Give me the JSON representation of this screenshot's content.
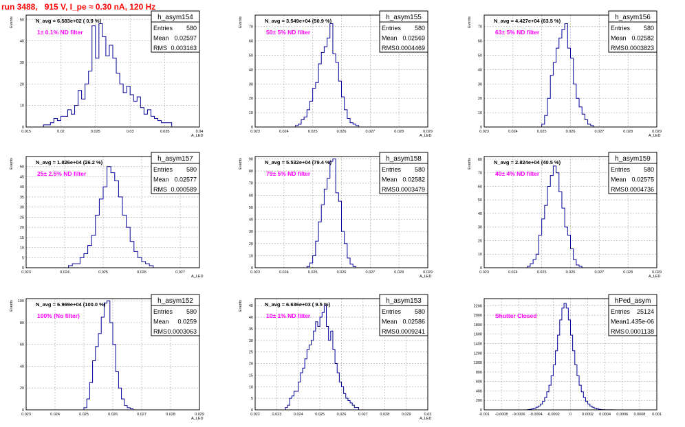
{
  "page_title": "run 3488,   915 V, I_pe ≈ 0.30 nA, 120 Hz",
  "colors": {
    "hist": "#000099",
    "grid": "#b0b0b0",
    "annotation": "#ff00ff",
    "title": "#ff0000"
  },
  "chart_data": [
    {
      "type": "bar",
      "name": "h_asym154",
      "ylabel": "Events",
      "xlabel": "A_LED",
      "xlim": [
        0.015,
        0.04
      ],
      "ylim": [
        0,
        52
      ],
      "xticks": [
        "0.015",
        "0.02",
        "0.025",
        "0.03",
        "0.035",
        "0.04"
      ],
      "yticks": [
        "0",
        "10",
        "20",
        "30",
        "40",
        "50"
      ],
      "navg": "N_avg = 6.583e+02 ( 0.9 %)",
      "filter": "1± 0.1% ND filter",
      "entries": "580",
      "mean": "0.02597",
      "rms": "0.003163",
      "bins": {
        "x0": 0.0165,
        "width": 0.0005,
        "values": [
          0,
          0,
          1,
          1,
          2,
          4,
          3,
          5,
          5,
          8,
          6,
          10,
          17,
          13,
          20,
          26,
          47,
          32,
          48,
          42,
          33,
          38,
          32,
          25,
          20,
          16,
          19,
          15,
          12,
          14,
          9,
          6,
          8,
          5,
          4,
          3,
          2,
          2,
          2,
          0
        ]
      }
    },
    {
      "type": "bar",
      "name": "h_asym155",
      "ylabel": "Events",
      "xlabel": "A_LED",
      "xlim": [
        0.023,
        0.029
      ],
      "ylim": [
        0,
        78
      ],
      "xticks": [
        "0.023",
        "0.024",
        "0.025",
        "0.026",
        "0.027",
        "0.028",
        "0.029"
      ],
      "yticks": [
        "0",
        "10",
        "20",
        "30",
        "40",
        "50",
        "60",
        "70"
      ],
      "navg": "N_avg = 3.549e+04 (50.9 %)",
      "filter": "50± 5% ND filter",
      "entries": "580",
      "mean": "0.02569",
      "rms": "0.0004469",
      "bins": {
        "x0": 0.0244,
        "width": 0.0001,
        "values": [
          1,
          2,
          5,
          7,
          12,
          18,
          27,
          31,
          44,
          52,
          56,
          62,
          72,
          51,
          45,
          32,
          21,
          12,
          6,
          3,
          2,
          1
        ]
      }
    },
    {
      "type": "bar",
      "name": "h_asym156",
      "ylabel": "Events",
      "xlabel": "A_LED",
      "xlim": [
        0.023,
        0.029
      ],
      "ylim": [
        0,
        78
      ],
      "xticks": [
        "0.023",
        "0.024",
        "0.025",
        "0.026",
        "0.027",
        "0.028",
        "0.029"
      ],
      "yticks": [
        "0",
        "10",
        "20",
        "30",
        "40",
        "50",
        "60",
        "70"
      ],
      "navg": "N_avg = 4.427e+04 (63.5 %)",
      "filter": "63± 5% ND filter",
      "entries": "580",
      "mean": "0.02582",
      "rms": "0.0003823",
      "bins": {
        "x0": 0.025,
        "width": 0.0001,
        "values": [
          2,
          8,
          20,
          36,
          45,
          55,
          62,
          68,
          72,
          55,
          48,
          30,
          20,
          14,
          9,
          5,
          2,
          1
        ]
      }
    },
    {
      "type": "bar",
      "name": "h_asym157",
      "ylabel": "Events",
      "xlabel": "A_LED",
      "xlim": [
        0.023,
        0.0275
      ],
      "ylim": [
        0,
        55
      ],
      "xticks": [
        "0.023",
        "0.024",
        "0.025",
        "0.026",
        "0.027"
      ],
      "yticks": [
        "0",
        "5",
        "10",
        "15",
        "20",
        "25",
        "30",
        "35",
        "40",
        "45",
        "50"
      ],
      "navg": "N_avg = 1.826e+04 (26.2 %)",
      "filter": "25± 2.5% ND filter",
      "entries": "580",
      "mean": "0.02577",
      "rms": "0.000589",
      "bins": {
        "x0": 0.0241,
        "width": 0.0001,
        "values": [
          1,
          2,
          2,
          5,
          7,
          11,
          16,
          26,
          34,
          40,
          50,
          47,
          43,
          35,
          26,
          20,
          13,
          8,
          5,
          3,
          2,
          1
        ]
      }
    },
    {
      "type": "bar",
      "name": "h_asym158",
      "ylabel": "Events",
      "xlabel": "A_LED",
      "xlim": [
        0.023,
        0.029
      ],
      "ylim": [
        0,
        92
      ],
      "xticks": [
        "0.023",
        "0.024",
        "0.025",
        "0.026",
        "0.027",
        "0.028",
        "0.029"
      ],
      "yticks": [
        "0",
        "10",
        "20",
        "30",
        "40",
        "50",
        "60",
        "70",
        "80",
        "90"
      ],
      "navg": "N_avg = 5.532e+04 (79.4 %)",
      "filter": "79± 5% ND filter",
      "entries": "580",
      "mean": "0.02582",
      "rms": "0.0003479",
      "bins": {
        "x0": 0.0248,
        "width": 0.0001,
        "values": [
          1,
          4,
          10,
          22,
          38,
          52,
          65,
          74,
          88,
          90,
          62,
          55,
          30,
          20,
          8,
          3,
          1
        ]
      }
    },
    {
      "type": "bar",
      "name": "h_asym159",
      "ylabel": "Events",
      "xlabel": "A_LED",
      "xlim": [
        0.023,
        0.029
      ],
      "ylim": [
        0,
        82
      ],
      "xticks": [
        "0.023",
        "0.024",
        "0.025",
        "0.026",
        "0.027",
        "0.028",
        "0.029"
      ],
      "yticks": [
        "0",
        "10",
        "20",
        "30",
        "40",
        "50",
        "60",
        "70",
        "80"
      ],
      "navg": "N_avg = 2.824e+04 (40.5 %)",
      "filter": "40± 4% ND filter",
      "entries": "580",
      "mean": "0.02575",
      "rms": "0.0004736",
      "bins": {
        "x0": 0.0245,
        "width": 0.0001,
        "values": [
          1,
          3,
          6,
          10,
          24,
          36,
          46,
          60,
          68,
          75,
          70,
          56,
          44,
          30,
          24,
          14,
          6,
          2,
          1
        ]
      }
    },
    {
      "type": "bar",
      "name": "h_asym152",
      "ylabel": "Events",
      "xlabel": "A_LED",
      "xlim": [
        0.023,
        0.029
      ],
      "ylim": [
        0,
        102
      ],
      "xticks": [
        "0.023",
        "0.024",
        "0.025",
        "0.026",
        "0.027",
        "0.028",
        "0.029"
      ],
      "yticks": [
        "0",
        "20",
        "40",
        "60",
        "80",
        "100"
      ],
      "navg": "N_avg = 6.969e+04 (100.0 %)",
      "filter": "100% (No filter)",
      "entries": "580",
      "mean": "0.0259",
      "rms": "0.0003063",
      "bins": {
        "x0": 0.025,
        "width": 0.0001,
        "values": [
          2,
          10,
          25,
          45,
          58,
          70,
          85,
          98,
          100,
          80,
          60,
          35,
          20,
          10,
          4,
          2,
          1
        ]
      }
    },
    {
      "type": "bar",
      "name": "h_asym153",
      "ylabel": "Events",
      "xlabel": "A_LED",
      "xlim": [
        0.022,
        0.03
      ],
      "ylim": [
        0,
        48
      ],
      "xticks": [
        "0.022",
        "0.023",
        "0.024",
        "0.025",
        "0.026",
        "0.027",
        "0.028",
        "0.029",
        "0.03"
      ],
      "yticks": [
        "0",
        "5",
        "10",
        "15",
        "20",
        "25",
        "30",
        "35",
        "40",
        "45"
      ],
      "navg": "N_avg = 6.636e+03 ( 9.5 %)",
      "filter": "10± 1% ND filter",
      "entries": "580",
      "mean": "0.02586",
      "rms": "0.0009241",
      "bins": {
        "x0": 0.0234,
        "width": 0.0001,
        "values": [
          1,
          2,
          5,
          6,
          8,
          8,
          12,
          16,
          18,
          22,
          26,
          28,
          30,
          34,
          38,
          36,
          40,
          42,
          45,
          36,
          30,
          34,
          26,
          20,
          16,
          12,
          10,
          7,
          5,
          4,
          3,
          2,
          1,
          1
        ]
      }
    },
    {
      "type": "bar",
      "name": "hPed_asym",
      "ylabel": "",
      "xlabel": "",
      "xlim": [
        -0.001,
        0.001
      ],
      "ylim": [
        0,
        2350
      ],
      "xticks": [
        "-0.001",
        "-0.0008",
        "-0.0006",
        "-0.0004",
        "-0.0002",
        "0",
        "0.0002",
        "0.0004",
        "0.0006",
        "0.0008",
        "0.001"
      ],
      "yticks": [
        "0",
        "200",
        "400",
        "600",
        "800",
        "1000",
        "1200",
        "1400",
        "1600",
        "1800",
        "2000",
        "2200"
      ],
      "navg": "",
      "filter": "Shutter Closed",
      "entries": "25124",
      "mean": "-1.435e-06",
      "rms": "0.0001138",
      "bins": {
        "x0": -0.0005,
        "width": 2.5e-05,
        "values": [
          5,
          10,
          20,
          35,
          55,
          80,
          120,
          180,
          260,
          380,
          520,
          720,
          950,
          1250,
          1580,
          1900,
          2150,
          2250,
          2150,
          1900,
          1580,
          1250,
          950,
          720,
          520,
          380,
          260,
          180,
          120,
          80,
          55,
          35,
          20,
          10,
          5,
          3,
          2,
          1,
          1,
          1
        ]
      }
    }
  ]
}
